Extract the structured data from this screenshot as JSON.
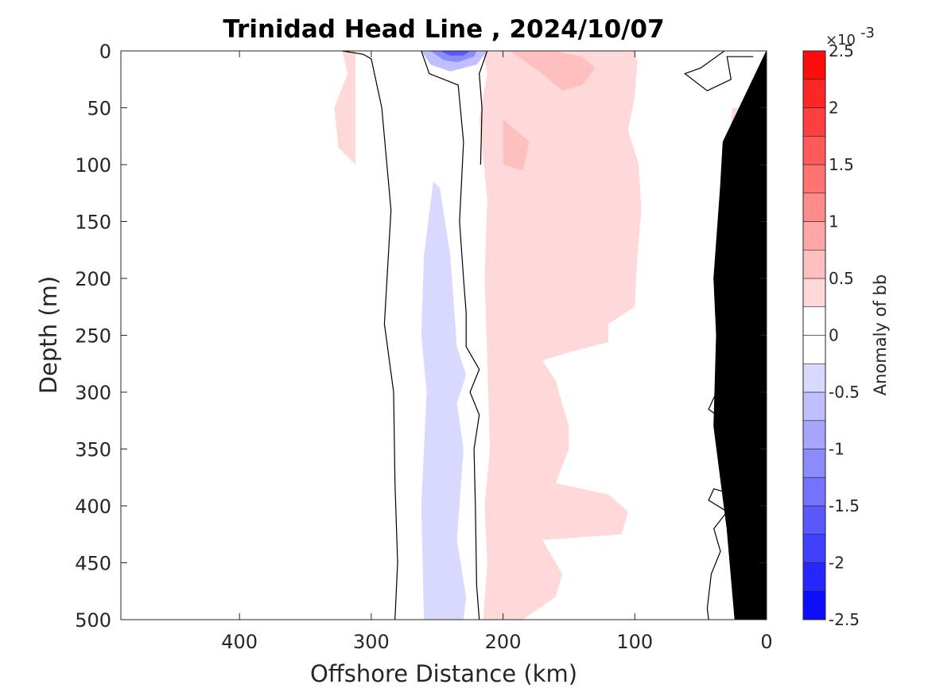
{
  "chart_data": {
    "type": "contour",
    "title": "Trinidad Head Line , 2024/10/07",
    "xlabel": "Offshore Distance (km)",
    "ylabel": "Depth (m)",
    "xlim": [
      490,
      0
    ],
    "ylim": [
      0,
      500
    ],
    "x_reversed": true,
    "y_reversed": true,
    "x_ticks": [
      400,
      300,
      200,
      100,
      0
    ],
    "y_ticks": [
      0,
      50,
      100,
      150,
      200,
      250,
      300,
      350,
      400,
      450,
      500
    ],
    "colorbar": {
      "label": "Anomaly of bb",
      "exponent_base": "×10",
      "exponent_power": "-3",
      "range": [
        -2.5,
        2.5
      ],
      "levels": [
        -2.5,
        -2.25,
        -2,
        -1.75,
        -1.5,
        -1.25,
        -1,
        -0.75,
        -0.5,
        -0.25,
        0,
        0.25,
        0.5,
        0.75,
        1,
        1.25,
        1.5,
        1.75,
        2,
        2.25,
        2.5
      ],
      "tick_values": [
        2.5,
        2,
        1.5,
        1,
        0.5,
        0,
        -0.5,
        -1,
        -1.5,
        -2,
        -2.5
      ],
      "tick_labels": [
        "2.5",
        "2",
        "1.5",
        "1",
        "0.5",
        "0",
        "-0.5",
        "-1",
        "-1.5",
        "-2",
        "-2.5"
      ],
      "colors": [
        "#0000ff",
        "#1a1aff",
        "#3333ff",
        "#4d4dff",
        "#6666ff",
        "#8080ff",
        "#9999ff",
        "#b3b3ff",
        "#ccccff",
        "#e6e6ff",
        "#ffffff",
        "#ffffff",
        "#ffe6e6",
        "#ffcccc",
        "#ffb3b3",
        "#ff9999",
        "#ff8080",
        "#ff6666",
        "#ff4d4d",
        "#ff3333",
        "#ff1a1a",
        "#ff0000"
      ]
    },
    "regions": [
      {
        "level": 0.375,
        "points": [
          [
            312,
            0
          ],
          [
            312,
            100
          ],
          [
            325,
            85
          ],
          [
            328,
            50
          ],
          [
            318,
            20
          ],
          [
            322,
            0
          ]
        ]
      },
      {
        "level": 0.375,
        "points": [
          [
            215,
            0
          ],
          [
            212,
            20
          ],
          [
            218,
            60
          ],
          [
            212,
            130
          ],
          [
            214,
            200
          ],
          [
            212,
            270
          ],
          [
            210,
            350
          ],
          [
            214,
            400
          ],
          [
            212,
            450
          ],
          [
            215,
            500
          ],
          [
            185,
            500
          ],
          [
            160,
            480
          ],
          [
            155,
            460
          ],
          [
            170,
            430
          ],
          [
            110,
            425
          ],
          [
            105,
            405
          ],
          [
            120,
            390
          ],
          [
            160,
            380
          ],
          [
            150,
            350
          ],
          [
            150,
            330
          ],
          [
            155,
            310
          ],
          [
            160,
            290
          ],
          [
            170,
            272
          ],
          [
            150,
            265
          ],
          [
            120,
            256
          ],
          [
            120,
            240
          ],
          [
            100,
            225
          ],
          [
            98,
            180
          ],
          [
            95,
            140
          ],
          [
            97,
            100
          ],
          [
            105,
            70
          ],
          [
            100,
            40
          ],
          [
            98,
            10
          ],
          [
            100,
            0
          ]
        ]
      },
      {
        "level": 0.625,
        "points": [
          [
            195,
            0
          ],
          [
            170,
            20
          ],
          [
            155,
            35
          ],
          [
            140,
            30
          ],
          [
            130,
            15
          ],
          [
            140,
            5
          ],
          [
            160,
            0
          ]
        ]
      },
      {
        "level": 0.625,
        "points": [
          [
            200,
            60
          ],
          [
            180,
            80
          ],
          [
            185,
            105
          ],
          [
            200,
            100
          ]
        ]
      },
      {
        "level": 0.375,
        "points": [
          [
            20,
            50
          ],
          [
            17,
            150
          ],
          [
            12,
            250
          ],
          [
            25,
            250
          ],
          [
            28,
            180
          ],
          [
            30,
            100
          ],
          [
            26,
            50
          ]
        ]
      },
      {
        "level": -0.375,
        "points": [
          [
            260,
            500
          ],
          [
            262,
            400
          ],
          [
            258,
            300
          ],
          [
            262,
            250
          ],
          [
            260,
            180
          ],
          [
            253,
            115
          ],
          [
            248,
            120
          ],
          [
            240,
            180
          ],
          [
            235,
            260
          ],
          [
            228,
            285
          ],
          [
            235,
            310
          ],
          [
            230,
            350
          ],
          [
            235,
            430
          ],
          [
            228,
            480
          ],
          [
            230,
            500
          ]
        ]
      },
      {
        "level": -0.625,
        "points": [
          [
            262,
            0
          ],
          [
            255,
            12
          ],
          [
            240,
            18
          ],
          [
            220,
            12
          ],
          [
            212,
            0
          ]
        ]
      },
      {
        "level": -1.125,
        "points": [
          [
            255,
            0
          ],
          [
            245,
            8
          ],
          [
            235,
            10
          ],
          [
            222,
            5
          ],
          [
            220,
            0
          ]
        ]
      },
      {
        "level": -1.625,
        "points": [
          [
            248,
            0
          ],
          [
            240,
            4
          ],
          [
            230,
            4
          ],
          [
            225,
            0
          ]
        ]
      }
    ],
    "zero_contours": [
      [
        [
          322,
          0
        ],
        [
          306,
          3
        ],
        [
          300,
          7
        ],
        [
          292,
          50
        ],
        [
          285,
          140
        ],
        [
          290,
          240
        ],
        [
          283,
          300
        ],
        [
          282,
          380
        ],
        [
          280,
          450
        ],
        [
          282,
          500
        ]
      ],
      [
        [
          262,
          0
        ],
        [
          256,
          20
        ],
        [
          234,
          30
        ],
        [
          230,
          80
        ],
        [
          233,
          150
        ],
        [
          230,
          200
        ],
        [
          228,
          230
        ],
        [
          228,
          260
        ],
        [
          218,
          280
        ],
        [
          225,
          300
        ],
        [
          218,
          320
        ],
        [
          222,
          350
        ],
        [
          221,
          400
        ],
        [
          220,
          470
        ],
        [
          218,
          500
        ]
      ],
      [
        [
          212,
          0
        ],
        [
          218,
          20
        ],
        [
          216,
          50
        ],
        [
          217,
          100
        ]
      ],
      [
        [
          32,
          0
        ],
        [
          50,
          15
        ],
        [
          62,
          20
        ],
        [
          45,
          35
        ],
        [
          27,
          25
        ],
        [
          30,
          5
        ],
        [
          10,
          5
        ]
      ],
      [
        [
          25,
          270
        ],
        [
          32,
          275
        ],
        [
          37,
          280
        ],
        [
          25,
          290
        ],
        [
          38,
          300
        ],
        [
          44,
          315
        ],
        [
          32,
          325
        ],
        [
          22,
          320
        ]
      ],
      [
        [
          25,
          390
        ],
        [
          40,
          385
        ],
        [
          44,
          395
        ],
        [
          30,
          405
        ],
        [
          40,
          420
        ],
        [
          35,
          440
        ],
        [
          42,
          460
        ],
        [
          45,
          490
        ],
        [
          44,
          500
        ]
      ]
    ],
    "bathymetry": [
      [
        0,
        0
      ],
      [
        0,
        500
      ],
      [
        24,
        500
      ],
      [
        30,
        420
      ],
      [
        40,
        330
      ],
      [
        38,
        250
      ],
      [
        40,
        200
      ],
      [
        35,
        120
      ],
      [
        33,
        80
      ],
      [
        0,
        0
      ]
    ]
  }
}
